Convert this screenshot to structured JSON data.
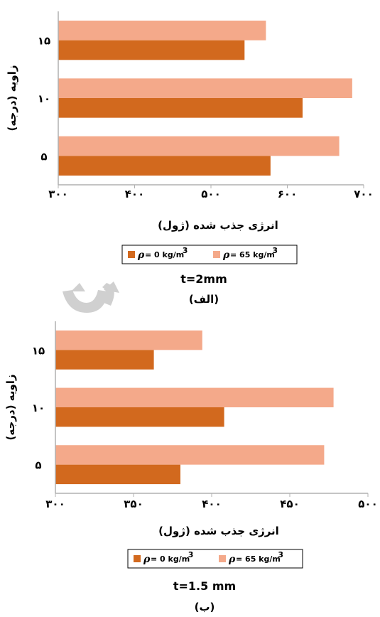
{
  "colors": {
    "series0": "#d2691e",
    "series1": "#f4a98a",
    "axis": "#b0b0b0",
    "watermark": "#c8c8c8"
  },
  "chart_data": [
    {
      "type": "bar",
      "orientation": "horizontal",
      "categories": [
        "۵",
        "۱۰",
        "۱۵"
      ],
      "series": [
        {
          "name": "ρ= 0 kg/m3",
          "values": [
            578,
            620,
            544
          ]
        },
        {
          "name": "ρ= 65 kg/m3",
          "values": [
            668,
            685,
            572
          ]
        }
      ],
      "xlim": [
        300,
        700
      ],
      "xticks": [
        "۳۰۰",
        "۴۰۰",
        "۵۰۰",
        "۶۰۰",
        "۷۰۰"
      ],
      "xtick_values": [
        300,
        400,
        500,
        600,
        700
      ],
      "xlabel": "انرژی جذب شده (ژول)",
      "ylabel": "زاویه (درجه)",
      "legend": {
        "placement": "bottom",
        "entries": [
          {
            "symbol": "ρ",
            "text": "= 0 kg/m",
            "sup": "3"
          },
          {
            "symbol": "ρ",
            "text": "= 65 kg/m",
            "sup": "3"
          }
        ]
      },
      "title": "t=2mm",
      "subtitle": "(الف)"
    },
    {
      "type": "bar",
      "orientation": "horizontal",
      "categories": [
        "۵",
        "۱۰",
        "۱۵"
      ],
      "series": [
        {
          "name": "ρ= 0 kg/m3",
          "values": [
            380,
            408,
            363
          ]
        },
        {
          "name": "ρ= 65 kg/m3",
          "values": [
            472,
            478,
            394
          ]
        }
      ],
      "xlim": [
        300,
        500
      ],
      "xticks": [
        "۳۰۰",
        "۳۵۰",
        "۴۰۰",
        "۴۵۰",
        "۵۰۰"
      ],
      "xtick_values": [
        300,
        350,
        400,
        450,
        500
      ],
      "xlabel": "انرژی جذب شده (ژول)",
      "ylabel": "زاویه (درجه)",
      "legend": {
        "placement": "bottom",
        "entries": [
          {
            "symbol": "ρ",
            "text": "= 0 kg/m",
            "sup": "3"
          },
          {
            "symbol": "ρ",
            "text": "= 65 kg/m",
            "sup": "3"
          }
        ]
      },
      "title": "t=1.5 mm",
      "subtitle": "(ب)"
    }
  ]
}
